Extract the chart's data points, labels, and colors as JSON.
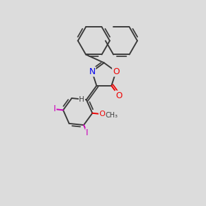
{
  "background_color": "#dcdcdc",
  "bond_color": "#3a3a3a",
  "atom_colors": {
    "N": "#0000ee",
    "O": "#ee0000",
    "I": "#cc00bb",
    "C": "#3a3a3a",
    "H": "#3a3a3a"
  },
  "line_width": 1.4,
  "figsize": [
    3.0,
    3.0
  ],
  "dpi": 100,
  "xlim": [
    0,
    10
  ],
  "ylim": [
    0,
    10
  ]
}
